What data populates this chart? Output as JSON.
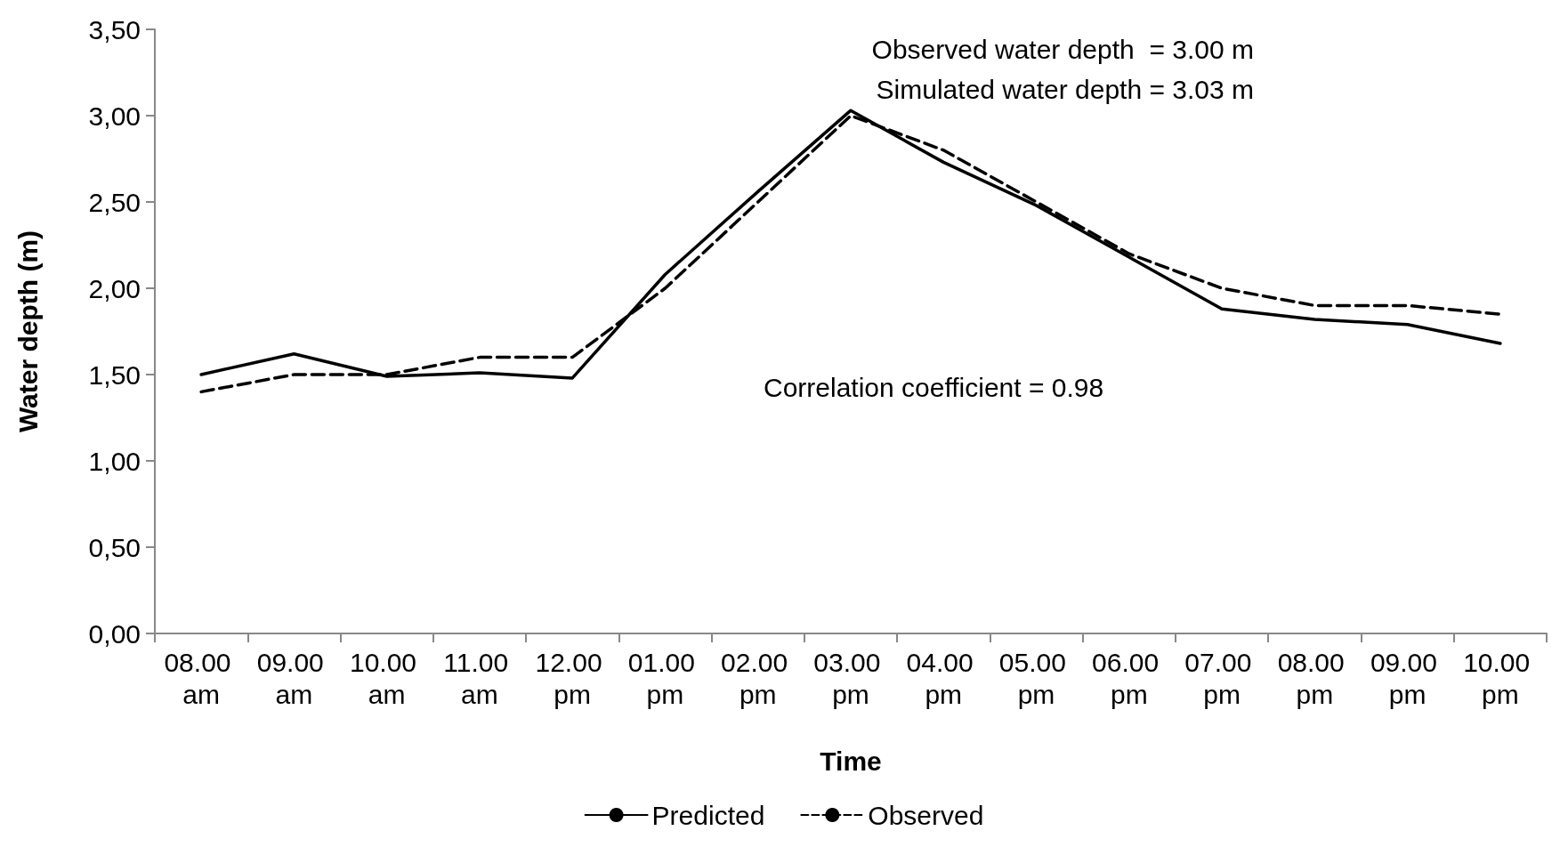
{
  "chart_data": {
    "type": "line",
    "xlabel": "Time",
    "ylabel": "Water depth (m)",
    "categories": [
      "08.00 am",
      "09.00 am",
      "10.00 am",
      "11.00 am",
      "12.00 pm",
      "01.00 pm",
      "02.00 pm",
      "03.00 pm",
      "04.00 pm",
      "05.00 pm",
      "06.00 pm",
      "07.00 pm",
      "08.00 pm",
      "09.00 pm",
      "10.00 pm"
    ],
    "series": [
      {
        "name": "Predicted",
        "color": "#000000",
        "line_style": "solid",
        "values": [
          1.5,
          1.62,
          1.49,
          1.51,
          1.48,
          2.08,
          2.56,
          3.03,
          2.73,
          2.48,
          2.18,
          1.88,
          1.82,
          1.79,
          1.68
        ]
      },
      {
        "name": "Observed",
        "color": "#000000",
        "line_style": "dashed",
        "values": [
          1.4,
          1.5,
          1.5,
          1.6,
          1.6,
          2.0,
          2.5,
          3.0,
          2.8,
          2.5,
          2.2,
          2.0,
          1.9,
          1.9,
          1.85
        ]
      }
    ],
    "ylim": [
      0,
      3.5
    ],
    "yticks": [
      {
        "value": 0,
        "label": "0,00"
      },
      {
        "value": 0.5,
        "label": "0,50"
      },
      {
        "value": 1,
        "label": "1,00"
      },
      {
        "value": 1.5,
        "label": "1,50"
      },
      {
        "value": 2,
        "label": "2,00"
      },
      {
        "value": 2.5,
        "label": "2,50"
      },
      {
        "value": 3,
        "label": "3,00"
      },
      {
        "value": 3.5,
        "label": "3,50"
      }
    ],
    "annotations": [
      "Observed water depth  = 3.00 m",
      "Simulated water depth = 3.03 m",
      "Correlation coefficient = 0.98"
    ],
    "grid": false,
    "legend": "bottom",
    "marker": "none"
  }
}
